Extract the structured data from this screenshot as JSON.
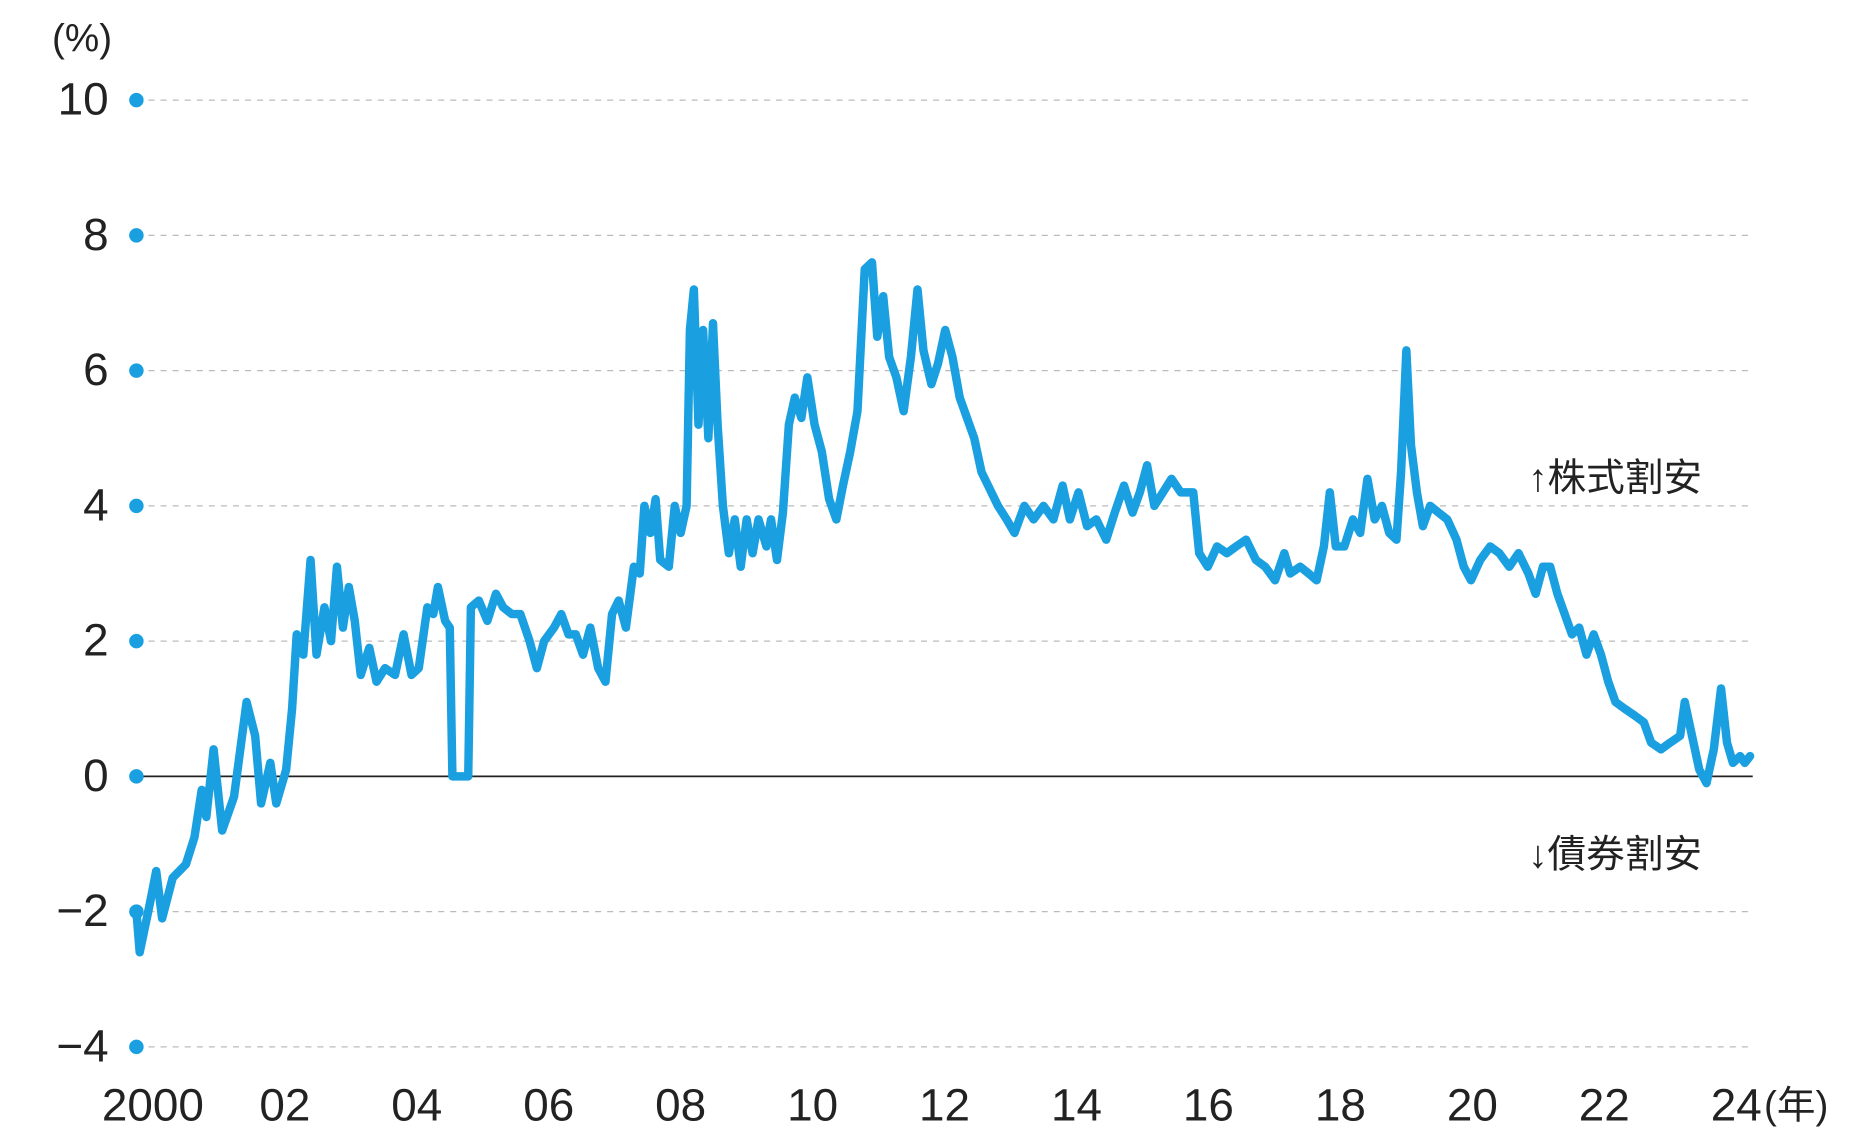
{
  "chart_data": {
    "type": "line",
    "y_unit": "(%)",
    "x_unit": "(年)",
    "annotations": [
      "↑株式割安",
      "↓債券割安"
    ],
    "color": "#1aa0e0",
    "grid": true,
    "xlim": [
      1999.75,
      2024.25
    ],
    "ylim": [
      -4.3,
      10.3
    ],
    "yticks": [
      {
        "value": -4,
        "label": "−4"
      },
      {
        "value": -2,
        "label": "−2"
      },
      0,
      2,
      4,
      6,
      8,
      10
    ],
    "xticks": [
      2000,
      {
        "value": 2002,
        "label": "02"
      },
      {
        "value": 2004,
        "label": "04"
      },
      {
        "value": 2006,
        "label": "06"
      },
      {
        "value": 2008,
        "label": "08"
      },
      {
        "value": 2010,
        "label": "10"
      },
      {
        "value": 2012,
        "label": "12"
      },
      {
        "value": 2014,
        "label": "14"
      },
      {
        "value": 2016,
        "label": "16"
      },
      {
        "value": 2018,
        "label": "18"
      },
      {
        "value": 2020,
        "label": "20"
      },
      {
        "value": 2022,
        "label": "22"
      },
      {
        "value": 2024,
        "label": "24"
      }
    ],
    "x": [
      1999.75,
      1999.8,
      1999.95,
      2000.05,
      2000.14,
      2000.3,
      2000.5,
      2000.63,
      2000.74,
      2000.81,
      2000.92,
      2001.05,
      2001.23,
      2001.42,
      2001.55,
      2001.64,
      2001.78,
      2001.87,
      2002.02,
      2002.11,
      2002.18,
      2002.28,
      2002.39,
      2002.48,
      2002.6,
      2002.7,
      2002.79,
      2002.88,
      2002.97,
      2003.06,
      2003.15,
      2003.28,
      2003.39,
      2003.52,
      2003.67,
      2003.8,
      2003.92,
      2004.03,
      2004.16,
      2004.25,
      2004.32,
      2004.43,
      2004.5,
      2004.54,
      2004.78,
      2004.82,
      2004.94,
      2005.07,
      2005.2,
      2005.31,
      2005.44,
      2005.57,
      2005.71,
      2005.82,
      2005.93,
      2006.08,
      2006.19,
      2006.3,
      2006.41,
      2006.52,
      2006.63,
      2006.75,
      2006.86,
      2006.96,
      2007.06,
      2007.17,
      2007.29,
      2007.38,
      2007.45,
      2007.54,
      2007.62,
      2007.69,
      2007.82,
      2007.91,
      2008.0,
      2008.09,
      2008.14,
      2008.2,
      2008.27,
      2008.34,
      2008.42,
      2008.49,
      2008.56,
      2008.64,
      2008.73,
      2008.82,
      2008.91,
      2009.0,
      2009.09,
      2009.18,
      2009.3,
      2009.37,
      2009.46,
      2009.55,
      2009.64,
      2009.73,
      2009.83,
      2009.92,
      2010.03,
      2010.14,
      2010.25,
      2010.36,
      2010.46,
      2010.57,
      2010.68,
      2010.79,
      2010.9,
      2010.98,
      2011.07,
      2011.16,
      2011.27,
      2011.38,
      2011.49,
      2011.59,
      2011.68,
      2011.8,
      2011.9,
      2012.01,
      2012.12,
      2012.23,
      2012.34,
      2012.45,
      2012.56,
      2012.66,
      2012.81,
      2012.94,
      2013.06,
      2013.21,
      2013.35,
      2013.5,
      2013.65,
      2013.79,
      2013.9,
      2014.03,
      2014.16,
      2014.3,
      2014.45,
      2014.58,
      2014.72,
      2014.85,
      2014.96,
      2015.07,
      2015.18,
      2015.31,
      2015.44,
      2015.58,
      2015.77,
      2015.86,
      2015.99,
      2016.13,
      2016.28,
      2016.42,
      2016.57,
      2016.72,
      2016.86,
      2017.01,
      2017.15,
      2017.24,
      2017.39,
      2017.52,
      2017.64,
      2017.75,
      2017.84,
      2017.93,
      2018.06,
      2018.19,
      2018.3,
      2018.41,
      2018.52,
      2018.63,
      2018.74,
      2018.85,
      2018.92,
      2019.0,
      2019.07,
      2019.16,
      2019.25,
      2019.36,
      2019.49,
      2019.62,
      2019.76,
      2019.87,
      2019.98,
      2020.12,
      2020.27,
      2020.41,
      2020.56,
      2020.7,
      2020.85,
      2020.96,
      2021.07,
      2021.18,
      2021.29,
      2021.4,
      2021.51,
      2021.62,
      2021.73,
      2021.84,
      2021.95,
      2022.06,
      2022.17,
      2022.31,
      2022.46,
      2022.6,
      2022.71,
      2022.86,
      2023.0,
      2023.15,
      2023.22,
      2023.33,
      2023.44,
      2023.55,
      2023.66,
      2023.77,
      2023.86,
      2023.95,
      2024.06,
      2024.13,
      2024.21
    ],
    "values": [
      -2.0,
      -2.6,
      -1.9,
      -1.4,
      -2.1,
      -1.5,
      -1.3,
      -0.9,
      -0.2,
      -0.6,
      0.4,
      -0.8,
      -0.3,
      1.1,
      0.6,
      -0.4,
      0.2,
      -0.4,
      0.1,
      1.0,
      2.1,
      1.8,
      3.2,
      1.8,
      2.5,
      2.0,
      3.1,
      2.2,
      2.8,
      2.3,
      1.5,
      1.9,
      1.4,
      1.6,
      1.5,
      2.1,
      1.5,
      1.6,
      2.5,
      2.4,
      2.8,
      2.3,
      2.2,
      0.0,
      0.0,
      2.5,
      2.6,
      2.3,
      2.7,
      2.5,
      2.4,
      2.4,
      2.0,
      1.6,
      2.0,
      2.2,
      2.4,
      2.1,
      2.1,
      1.8,
      2.2,
      1.6,
      1.4,
      2.4,
      2.6,
      2.2,
      3.1,
      3.0,
      4.0,
      3.6,
      4.1,
      3.2,
      3.1,
      4.0,
      3.6,
      4.0,
      6.6,
      7.2,
      5.2,
      6.6,
      5.0,
      6.7,
      5.2,
      4.0,
      3.3,
      3.8,
      3.1,
      3.8,
      3.3,
      3.8,
      3.4,
      3.8,
      3.2,
      3.9,
      5.2,
      5.6,
      5.3,
      5.9,
      5.2,
      4.8,
      4.1,
      3.8,
      4.3,
      4.8,
      5.4,
      7.5,
      7.6,
      6.5,
      7.1,
      6.2,
      5.9,
      5.4,
      6.2,
      7.2,
      6.3,
      5.8,
      6.1,
      6.6,
      6.2,
      5.6,
      5.3,
      5.0,
      4.5,
      4.3,
      4.0,
      3.8,
      3.6,
      4.0,
      3.8,
      4.0,
      3.8,
      4.3,
      3.8,
      4.2,
      3.7,
      3.8,
      3.5,
      3.9,
      4.3,
      3.9,
      4.2,
      4.6,
      4.0,
      4.2,
      4.4,
      4.2,
      4.2,
      3.3,
      3.1,
      3.4,
      3.3,
      3.4,
      3.5,
      3.2,
      3.1,
      2.9,
      3.3,
      3.0,
      3.1,
      3.0,
      2.9,
      3.4,
      4.2,
      3.4,
      3.4,
      3.8,
      3.6,
      4.4,
      3.8,
      4.0,
      3.6,
      3.5,
      4.5,
      6.3,
      4.9,
      4.2,
      3.7,
      4.0,
      3.9,
      3.8,
      3.5,
      3.1,
      2.9,
      3.2,
      3.4,
      3.3,
      3.1,
      3.3,
      3.0,
      2.7,
      3.1,
      3.1,
      2.7,
      2.4,
      2.1,
      2.2,
      1.8,
      2.1,
      1.8,
      1.4,
      1.1,
      1.0,
      0.9,
      0.8,
      0.5,
      0.4,
      0.5,
      0.6,
      1.1,
      0.6,
      0.1,
      -0.1,
      0.4,
      1.3,
      0.5,
      0.2,
      0.3,
      0.2,
      0.3
    ]
  }
}
